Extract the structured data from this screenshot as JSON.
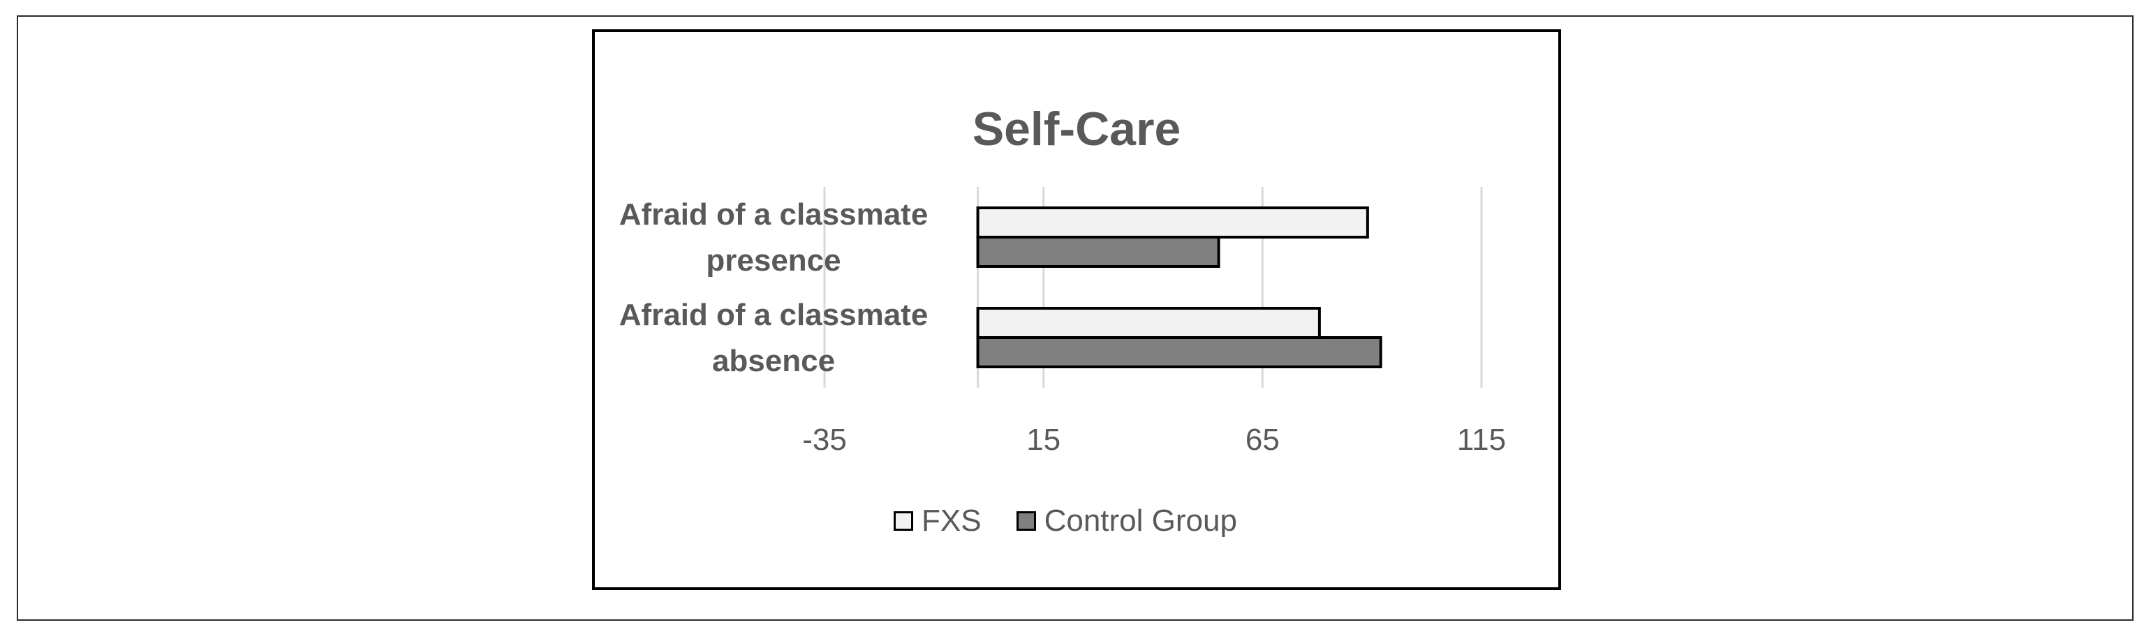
{
  "chart_data": {
    "type": "bar",
    "orientation": "horizontal",
    "title": "Self-Care",
    "categories": [
      [
        "Afraid of a classmate",
        "presence"
      ],
      [
        "Afraid of a classmate",
        "absence"
      ]
    ],
    "series": [
      {
        "name": "FXS",
        "values": [
          89,
          78
        ],
        "color": "#f2f2f2"
      },
      {
        "name": "Control Group",
        "values": [
          55,
          92
        ],
        "color": "#808080"
      }
    ],
    "xticks": [
      "-35",
      "15",
      "65",
      "115"
    ],
    "xlim": [
      -35,
      115
    ],
    "grid": true,
    "legend": "bottom"
  }
}
